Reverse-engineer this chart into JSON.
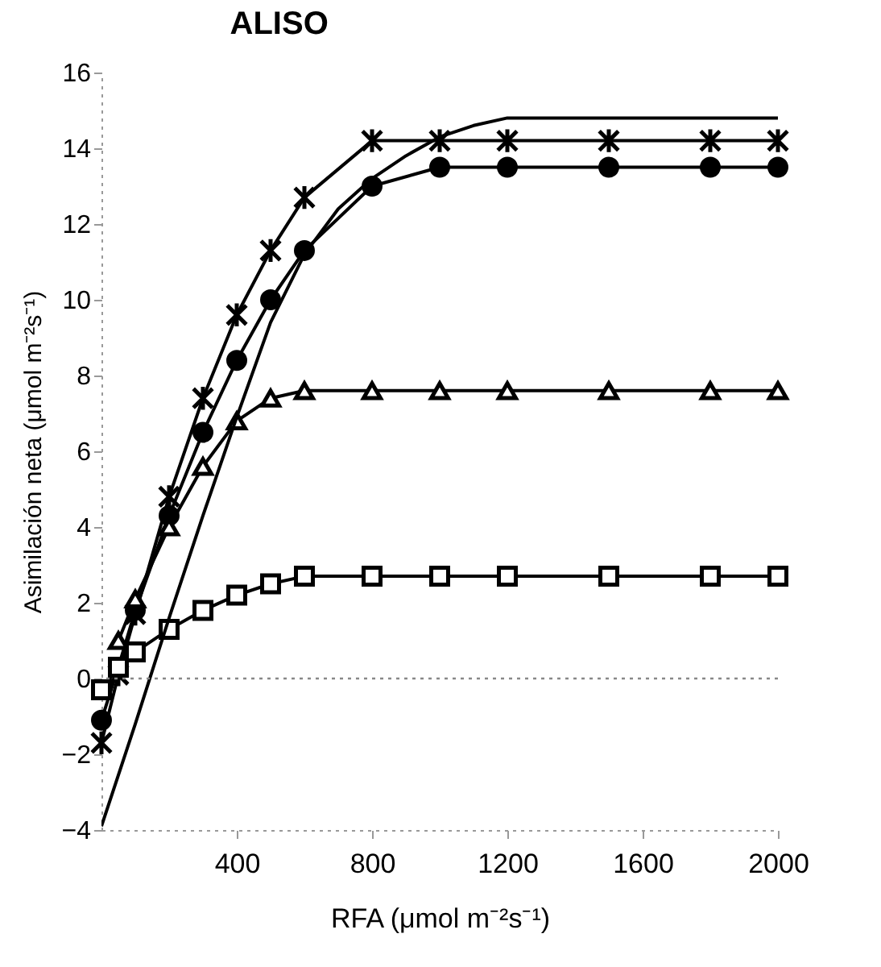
{
  "chart_data": {
    "type": "line",
    "title": "ALISO",
    "xlabel": "RFA (μmol m⁻²s⁻¹)",
    "ylabel": "Asimilación neta (μmol m⁻²s⁻¹)",
    "series": [
      {
        "color": "#000000",
        "marker": "cross",
        "x": [
          0,
          50,
          100,
          200,
          300,
          400,
          500,
          600,
          800,
          1000,
          1200,
          1500,
          1800,
          2000
        ],
        "values": [
          -1.7,
          0.1,
          1.7,
          4.8,
          7.4,
          9.6,
          11.3,
          12.7,
          14.2,
          14.2,
          14.2,
          14.2,
          14.2,
          14.2
        ]
      },
      {
        "color": "#000000",
        "marker": "circle",
        "x": [
          0,
          50,
          100,
          200,
          300,
          400,
          500,
          600,
          800,
          1000,
          1200,
          1500,
          1800,
          2000
        ],
        "values": [
          -1.1,
          0.3,
          1.8,
          4.3,
          6.5,
          8.4,
          10.0,
          11.3,
          13.0,
          13.5,
          13.5,
          13.5,
          13.5,
          13.5
        ]
      },
      {
        "color": "#000000",
        "marker": "triangle",
        "x": [
          50,
          100,
          200,
          300,
          400,
          500,
          600,
          800,
          1000,
          1200,
          1500,
          1800,
          2000
        ],
        "values": [
          1.0,
          2.1,
          4.0,
          5.6,
          6.8,
          7.4,
          7.6,
          7.6,
          7.6,
          7.6,
          7.6,
          7.6,
          7.6
        ]
      },
      {
        "color": "#000000",
        "marker": "square",
        "x": [
          0,
          50,
          100,
          200,
          300,
          400,
          500,
          600,
          800,
          1000,
          1200,
          1500,
          1800,
          2000
        ],
        "values": [
          -0.3,
          0.3,
          0.7,
          1.3,
          1.8,
          2.2,
          2.5,
          2.7,
          2.7,
          2.7,
          2.7,
          2.7,
          2.7,
          2.7
        ]
      },
      {
        "color": "#000000",
        "marker": "none",
        "x": [
          0,
          100,
          200,
          300,
          400,
          500,
          600,
          700,
          800,
          900,
          1000,
          1100,
          1200,
          1500,
          2000
        ],
        "values": [
          -3.9,
          -1.2,
          1.6,
          4.3,
          6.9,
          9.4,
          11.2,
          12.4,
          13.2,
          13.8,
          14.3,
          14.6,
          14.8,
          14.8,
          14.8
        ]
      }
    ],
    "xlim": [
      0,
      2000
    ],
    "xticks": [
      400,
      800,
      1200,
      1600,
      2000
    ],
    "ylim": [
      -4,
      16
    ],
    "yticks": [
      -4,
      -2,
      0,
      2,
      4,
      6,
      8,
      10,
      12,
      14,
      16
    ],
    "ref_lines": [
      {
        "axis": "y",
        "value": 0,
        "line_style": "dotted",
        "color": "#888888"
      }
    ]
  }
}
